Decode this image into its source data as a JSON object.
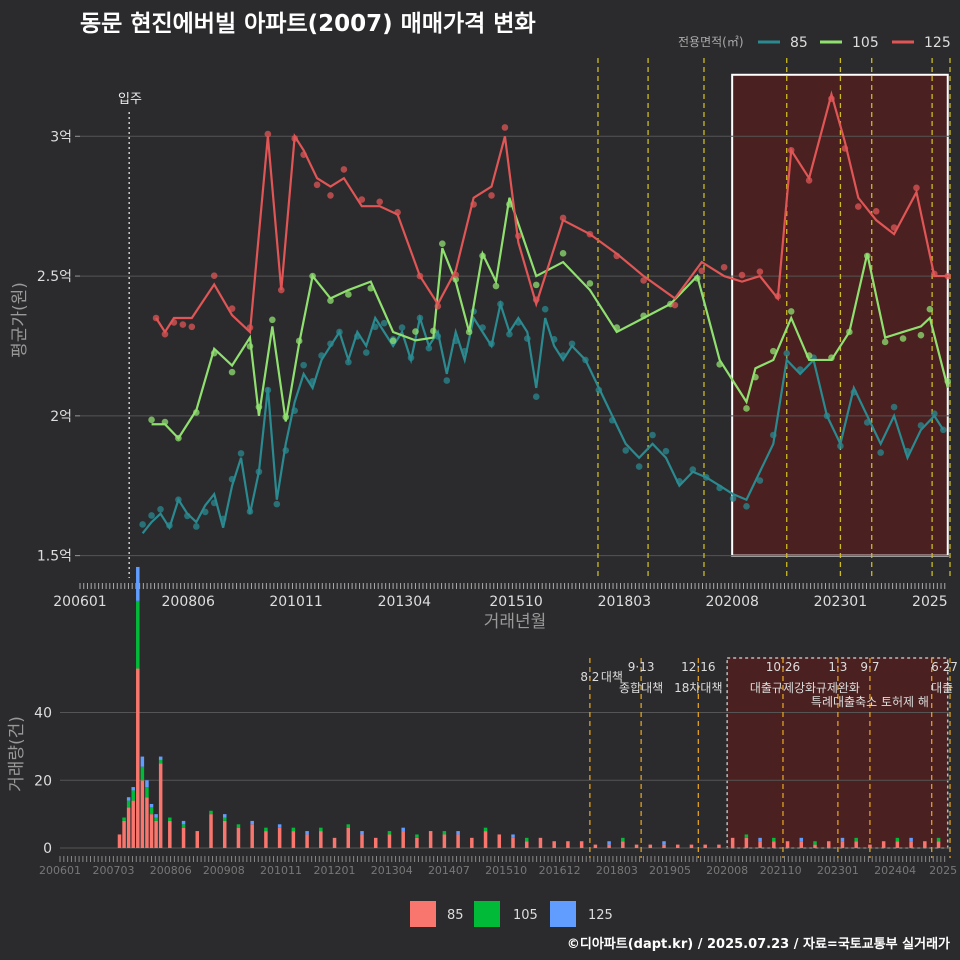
{
  "title": "동문 현진에버빌 아파트(2007) 매매가격 변화",
  "footer": "©디아파트(dapt.kr) / 2025.07.23 / 자료=국토교통부 실거래가",
  "colors": {
    "s85": "#2a8a90",
    "s105": "#90e070",
    "s125": "#e05555",
    "b85": "#f8766d",
    "b105": "#00ba38",
    "b125": "#619cff",
    "policy": "#ccbb22",
    "highlight": "#5a1a1a"
  },
  "chart_data": [
    {
      "type": "line",
      "ylabel": "평균가(원)",
      "xlabel": "거래년월",
      "legend_title": "전용면적(㎡)",
      "legend_position": "top-right",
      "yticks": [
        "1.5억",
        "2억",
        "2.5억",
        "3억"
      ],
      "ytick_values": [
        1.5,
        2.0,
        2.5,
        3.0
      ],
      "ylim": [
        1.42,
        3.28
      ],
      "xticks": [
        "200601",
        "200806",
        "201011",
        "201304",
        "201510",
        "201803",
        "202008",
        "202301",
        "2025"
      ],
      "xtick_values": [
        2006.0,
        2008.42,
        2010.83,
        2013.25,
        2015.75,
        2018.17,
        2020.58,
        2023.0,
        2025.0
      ],
      "xlim": [
        2006.0,
        2025.45
      ],
      "annotation": "입주",
      "annotation_x": 2007.1,
      "policy_lines": [
        2017.58,
        2018.7,
        2019.95,
        2021.8,
        2023.0,
        2023.7,
        2025.05,
        2025.45
      ],
      "highlight_range": [
        2020.58,
        2025.4
      ],
      "highlight_y": [
        1.5,
        3.22
      ],
      "series": [
        {
          "name": "85",
          "color": "#2a8a90",
          "x": [
            2007.4,
            2007.6,
            2007.8,
            2008.0,
            2008.2,
            2008.4,
            2008.6,
            2008.8,
            2009.0,
            2009.2,
            2009.4,
            2009.6,
            2009.8,
            2010.0,
            2010.2,
            2010.4,
            2010.6,
            2010.8,
            2011.0,
            2011.2,
            2011.4,
            2011.6,
            2011.8,
            2012.0,
            2012.2,
            2012.4,
            2012.6,
            2012.8,
            2013.0,
            2013.2,
            2013.4,
            2013.6,
            2013.8,
            2014.0,
            2014.2,
            2014.4,
            2014.6,
            2014.8,
            2015.0,
            2015.2,
            2015.4,
            2015.6,
            2015.8,
            2016.0,
            2016.2,
            2016.4,
            2016.6,
            2016.8,
            2017.0,
            2017.3,
            2017.6,
            2017.9,
            2018.2,
            2018.5,
            2018.8,
            2019.1,
            2019.4,
            2019.7,
            2020.0,
            2020.3,
            2020.6,
            2020.9,
            2021.2,
            2021.5,
            2021.8,
            2022.1,
            2022.4,
            2022.7,
            2023.0,
            2023.3,
            2023.6,
            2023.9,
            2024.2,
            2024.5,
            2024.8,
            2025.1,
            2025.3
          ],
          "values": [
            1.58,
            1.62,
            1.65,
            1.6,
            1.7,
            1.65,
            1.62,
            1.68,
            1.72,
            1.6,
            1.75,
            1.85,
            1.65,
            1.8,
            2.1,
            1.7,
            1.9,
            2.05,
            2.15,
            2.1,
            2.2,
            2.25,
            2.3,
            2.2,
            2.3,
            2.25,
            2.35,
            2.3,
            2.25,
            2.3,
            2.2,
            2.35,
            2.25,
            2.3,
            2.15,
            2.3,
            2.2,
            2.35,
            2.3,
            2.25,
            2.4,
            2.3,
            2.35,
            2.3,
            2.1,
            2.35,
            2.25,
            2.2,
            2.25,
            2.2,
            2.1,
            2.0,
            1.9,
            1.85,
            1.9,
            1.85,
            1.75,
            1.8,
            1.78,
            1.75,
            1.72,
            1.7,
            1.8,
            1.9,
            2.2,
            2.15,
            2.2,
            2.0,
            1.9,
            2.1,
            2.0,
            1.9,
            2.0,
            1.85,
            1.95,
            2.0,
            1.95
          ]
        },
        {
          "name": "105",
          "color": "#90e070",
          "x": [
            2007.6,
            2007.9,
            2008.2,
            2008.6,
            2009.0,
            2009.4,
            2009.8,
            2010.0,
            2010.3,
            2010.6,
            2010.9,
            2011.2,
            2011.6,
            2012.0,
            2012.5,
            2013.0,
            2013.5,
            2013.9,
            2014.1,
            2014.4,
            2014.7,
            2015.0,
            2015.3,
            2015.6,
            2016.2,
            2016.8,
            2017.4,
            2018.0,
            2018.6,
            2019.2,
            2019.8,
            2020.3,
            2020.9,
            2021.1,
            2021.5,
            2021.9,
            2022.3,
            2022.8,
            2023.2,
            2023.6,
            2024.0,
            2024.4,
            2024.8,
            2025.0,
            2025.4
          ],
          "values": [
            1.97,
            1.97,
            1.92,
            2.02,
            2.24,
            2.18,
            2.28,
            2.0,
            2.32,
            1.98,
            2.26,
            2.5,
            2.42,
            2.45,
            2.48,
            2.3,
            2.27,
            2.28,
            2.6,
            2.48,
            2.3,
            2.58,
            2.48,
            2.78,
            2.5,
            2.55,
            2.45,
            2.3,
            2.35,
            2.4,
            2.5,
            2.2,
            2.05,
            2.17,
            2.2,
            2.35,
            2.2,
            2.2,
            2.3,
            2.58,
            2.28,
            2.3,
            2.32,
            2.35,
            2.1
          ]
        },
        {
          "name": "125",
          "color": "#e05555",
          "x": [
            2007.7,
            2007.9,
            2008.1,
            2008.3,
            2008.5,
            2009.0,
            2009.4,
            2009.8,
            2010.2,
            2010.5,
            2010.8,
            2011.0,
            2011.3,
            2011.6,
            2011.9,
            2012.3,
            2012.7,
            2013.1,
            2013.6,
            2014.0,
            2014.4,
            2014.8,
            2015.2,
            2015.5,
            2015.8,
            2016.2,
            2016.8,
            2017.4,
            2018.0,
            2018.6,
            2019.3,
            2019.9,
            2020.4,
            2020.8,
            2021.2,
            2021.6,
            2021.9,
            2022.3,
            2022.8,
            2023.1,
            2023.4,
            2023.8,
            2024.2,
            2024.7,
            2025.1,
            2025.4
          ],
          "values": [
            2.35,
            2.3,
            2.35,
            2.35,
            2.35,
            2.47,
            2.36,
            2.3,
            3.0,
            2.45,
            3.0,
            2.95,
            2.85,
            2.82,
            2.85,
            2.75,
            2.75,
            2.72,
            2.5,
            2.4,
            2.52,
            2.78,
            2.82,
            3.0,
            2.62,
            2.4,
            2.7,
            2.65,
            2.58,
            2.5,
            2.42,
            2.55,
            2.5,
            2.48,
            2.5,
            2.42,
            2.95,
            2.85,
            3.15,
            2.98,
            2.78,
            2.7,
            2.65,
            2.8,
            2.5,
            2.5
          ]
        }
      ]
    },
    {
      "type": "bar",
      "ylabel": "거래량(건)",
      "yticks": [
        "0",
        "20",
        "40"
      ],
      "ytick_values": [
        0,
        20,
        40
      ],
      "ylim": [
        0,
        57
      ],
      "xticks": [
        "200601",
        "200703",
        "200806",
        "200908",
        "201011",
        "201201",
        "201304",
        "201407",
        "201510",
        "201612",
        "201803",
        "201905",
        "202008",
        "202110",
        "202301",
        "202404",
        "2025"
      ],
      "xtick_values": [
        2006.0,
        2007.17,
        2008.42,
        2009.58,
        2010.83,
        2012.0,
        2013.25,
        2014.5,
        2015.75,
        2016.92,
        2018.17,
        2019.33,
        2020.58,
        2021.75,
        2023.0,
        2024.25,
        2025.3
      ],
      "xlim": [
        2006.0,
        2025.45
      ],
      "legend": [
        "85",
        "105",
        "125"
      ],
      "legend_position": "bottom",
      "policy_lines": [
        2017.58,
        2018.7,
        2019.95,
        2021.8,
        2023.0,
        2023.7,
        2025.05,
        2025.45
      ],
      "highlight_range": [
        2020.58,
        2025.4
      ],
      "policy_labels": [
        {
          "date": "8·2",
          "text": "대책",
          "x": 2017.58
        },
        {
          "date": "9·13",
          "text": "종합대책",
          "x": 2018.7
        },
        {
          "date": "12·16",
          "text": "18차대책",
          "x": 2019.95
        },
        {
          "date": "10·26",
          "text": "대출규제강화",
          "x": 2021.8
        },
        {
          "date": "1·3",
          "text": "규제완화",
          "x": 2023.0
        },
        {
          "date": "9·7",
          "text": "특례대출축소 토허제 해",
          "x": 2023.7
        },
        {
          "date": "6·27",
          "text": "대출",
          "x": 2025.3
        }
      ],
      "month_starts": [
        2007.3,
        2007.4,
        2007.5,
        2007.6,
        2007.7,
        2007.8,
        2007.9,
        2008.0,
        2008.1,
        2008.2,
        2008.4,
        2008.7,
        2009.0,
        2009.3,
        2009.6,
        2009.9,
        2010.2,
        2010.5,
        2010.8,
        2011.1,
        2011.4,
        2011.7,
        2012.0,
        2012.3,
        2012.6,
        2012.9,
        2013.2,
        2013.5,
        2013.8,
        2014.1,
        2014.4,
        2014.7,
        2015.0,
        2015.3,
        2015.6,
        2015.9,
        2016.2,
        2016.5,
        2016.8,
        2017.1,
        2017.4,
        2017.7,
        2018.0,
        2018.3,
        2018.6,
        2018.9,
        2019.2,
        2019.5,
        2019.8,
        2020.1,
        2020.4,
        2020.7,
        2021.0,
        2021.3,
        2021.6,
        2021.9,
        2022.2,
        2022.5,
        2022.8,
        2023.1,
        2023.4,
        2023.7,
        2024.0,
        2024.3,
        2024.6,
        2024.9,
        2025.2
      ],
      "series": [
        {
          "name": "85",
          "color": "#f8766d",
          "values": [
            4,
            8,
            12,
            14,
            53,
            20,
            15,
            10,
            8,
            25,
            8,
            6,
            5,
            10,
            8,
            6,
            7,
            5,
            6,
            5,
            4,
            5,
            3,
            6,
            4,
            3,
            4,
            5,
            3,
            5,
            4,
            4,
            3,
            5,
            4,
            3,
            2,
            3,
            2,
            2,
            2,
            1,
            1,
            2,
            1,
            1,
            1,
            1,
            1,
            1,
            1,
            3,
            3,
            2,
            2,
            2,
            2,
            1,
            2,
            2,
            2,
            1,
            2,
            2,
            2,
            2,
            2
          ]
        },
        {
          "name": "105",
          "color": "#00ba38",
          "values": [
            0,
            1,
            2,
            3,
            20,
            4,
            3,
            2,
            1,
            1,
            1,
            1,
            0,
            1,
            1,
            1,
            0,
            1,
            0,
            1,
            0,
            1,
            0,
            1,
            0,
            0,
            1,
            0,
            1,
            0,
            1,
            0,
            0,
            1,
            0,
            0,
            1,
            0,
            0,
            0,
            0,
            0,
            0,
            1,
            0,
            0,
            0,
            0,
            0,
            0,
            0,
            0,
            1,
            0,
            1,
            0,
            0,
            1,
            0,
            0,
            1,
            0,
            0,
            1,
            0,
            0,
            1
          ]
        },
        {
          "name": "125",
          "color": "#619cff",
          "values": [
            0,
            0,
            1,
            1,
            10,
            3,
            2,
            1,
            1,
            1,
            0,
            1,
            0,
            0,
            1,
            0,
            1,
            0,
            1,
            0,
            1,
            0,
            0,
            0,
            1,
            0,
            0,
            1,
            0,
            0,
            0,
            1,
            0,
            0,
            0,
            1,
            0,
            0,
            0,
            0,
            0,
            0,
            1,
            0,
            0,
            0,
            1,
            0,
            0,
            0,
            0,
            0,
            0,
            1,
            0,
            0,
            1,
            0,
            0,
            1,
            0,
            0,
            0,
            0,
            1,
            0,
            0
          ]
        }
      ]
    }
  ]
}
